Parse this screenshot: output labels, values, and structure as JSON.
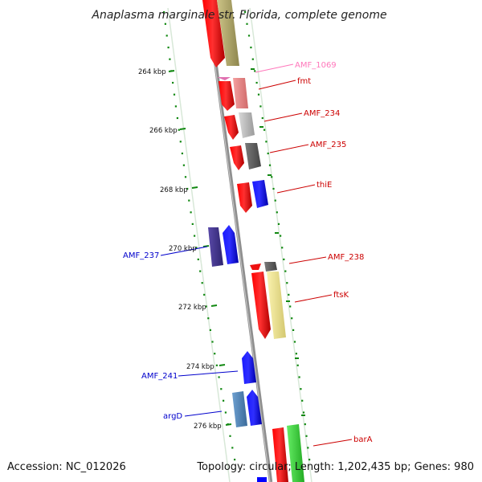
{
  "title": "Anaplasma marginale str. Florida, complete genome",
  "accession": "Accession: NC_012026",
  "summary": "Topology: circular; Length: 1,202,435 bp; Genes: 980",
  "scale_labels": [
    "264 kbp",
    "266 kbp",
    "268 kbp",
    "270 kbp",
    "272 kbp",
    "274 kbp",
    "276 kbp"
  ],
  "gene_labels": {
    "AMF_1069": "AMF_1069",
    "fmt": "fmt",
    "AMF_234": "AMF_234",
    "AMF_235": "AMF_235",
    "thiE": "thiE",
    "AMF_237": "AMF_237",
    "AMF_238": "AMF_238",
    "ftsK": "ftsK",
    "AMF_241": "AMF_241",
    "argD": "argD",
    "barA": "barA"
  },
  "colors": {
    "cds_red": "#ff0000",
    "cds_blue": "#0000ff",
    "label_red": "#cc0000",
    "label_blue": "#0000cc",
    "label_pink": "#ff77bb",
    "backbone": "#888888",
    "tick_green": "#118811"
  }
}
